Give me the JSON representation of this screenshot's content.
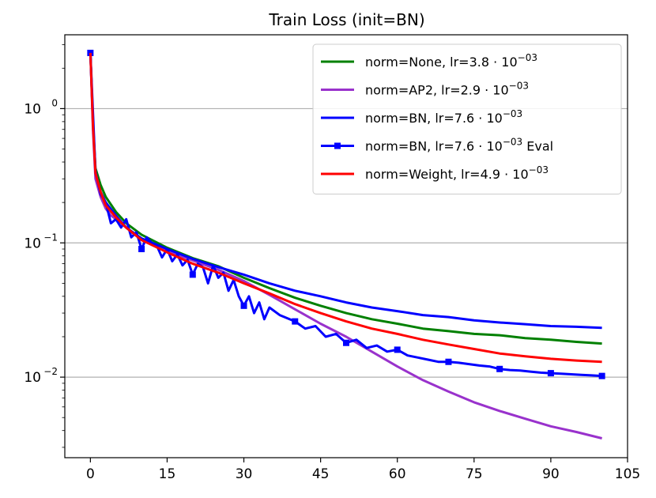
{
  "chart_data": {
    "type": "line",
    "title": "Train Loss (init=BN)",
    "xlabel": "",
    "ylabel": "",
    "xlim": [
      -5,
      105
    ],
    "ylim_log10": [
      -2.6,
      0.55
    ],
    "yscale": "log",
    "grid": "y-major",
    "legend_position": "top-right",
    "x_ticks": [
      0,
      15,
      30,
      45,
      60,
      75,
      90,
      105
    ],
    "y_ticks": [
      {
        "value": 1,
        "base": "10",
        "exp": "0"
      },
      {
        "value": 0.1,
        "base": "10",
        "exp": "−1"
      },
      {
        "value": 0.01,
        "base": "10",
        "exp": "−2"
      }
    ],
    "series": [
      {
        "name": "norm=None",
        "lr_text": "lr=3.8",
        "exp_text": "−03",
        "suffix": "",
        "color": "#008000",
        "markers": false,
        "points": [
          [
            0,
            2.6
          ],
          [
            0.5,
            0.8
          ],
          [
            1,
            0.36
          ],
          [
            2,
            0.27
          ],
          [
            3,
            0.22
          ],
          [
            5,
            0.17
          ],
          [
            7,
            0.14
          ],
          [
            10,
            0.115
          ],
          [
            15,
            0.092
          ],
          [
            20,
            0.077
          ],
          [
            25,
            0.067
          ],
          [
            30,
            0.055
          ],
          [
            35,
            0.046
          ],
          [
            40,
            0.039
          ],
          [
            45,
            0.034
          ],
          [
            50,
            0.03
          ],
          [
            55,
            0.027
          ],
          [
            60,
            0.025
          ],
          [
            65,
            0.023
          ],
          [
            70,
            0.022
          ],
          [
            75,
            0.021
          ],
          [
            80,
            0.0205
          ],
          [
            85,
            0.0195
          ],
          [
            90,
            0.019
          ],
          [
            95,
            0.0183
          ],
          [
            100,
            0.0178
          ]
        ]
      },
      {
        "name": "norm=AP2",
        "lr_text": "lr=2.9",
        "exp_text": "−03",
        "suffix": "",
        "color": "#9932CC",
        "markers": false,
        "points": [
          [
            0,
            2.6
          ],
          [
            0.5,
            0.7
          ],
          [
            1,
            0.3
          ],
          [
            2,
            0.22
          ],
          [
            3,
            0.18
          ],
          [
            4,
            0.16
          ],
          [
            5,
            0.15
          ],
          [
            7,
            0.13
          ],
          [
            10,
            0.105
          ],
          [
            15,
            0.087
          ],
          [
            20,
            0.074
          ],
          [
            25,
            0.063
          ],
          [
            30,
            0.052
          ],
          [
            35,
            0.041
          ],
          [
            40,
            0.032
          ],
          [
            45,
            0.025
          ],
          [
            50,
            0.02
          ],
          [
            55,
            0.0155
          ],
          [
            60,
            0.012
          ],
          [
            65,
            0.0095
          ],
          [
            70,
            0.0078
          ],
          [
            75,
            0.0065
          ],
          [
            80,
            0.0056
          ],
          [
            85,
            0.0049
          ],
          [
            90,
            0.0043
          ],
          [
            95,
            0.0039
          ],
          [
            100,
            0.0035
          ]
        ]
      },
      {
        "name": "norm=BN",
        "lr_text": "lr=7.6",
        "exp_text": "−03",
        "suffix": "",
        "color": "#0000FF",
        "markers": false,
        "points": [
          [
            0,
            2.6
          ],
          [
            0.5,
            0.8
          ],
          [
            1,
            0.33
          ],
          [
            2,
            0.24
          ],
          [
            3,
            0.2
          ],
          [
            5,
            0.16
          ],
          [
            7,
            0.13
          ],
          [
            10,
            0.108
          ],
          [
            15,
            0.09
          ],
          [
            20,
            0.076
          ],
          [
            25,
            0.066
          ],
          [
            30,
            0.058
          ],
          [
            35,
            0.05
          ],
          [
            40,
            0.044
          ],
          [
            45,
            0.04
          ],
          [
            50,
            0.036
          ],
          [
            55,
            0.033
          ],
          [
            60,
            0.031
          ],
          [
            65,
            0.029
          ],
          [
            70,
            0.028
          ],
          [
            75,
            0.0265
          ],
          [
            80,
            0.0255
          ],
          [
            85,
            0.0248
          ],
          [
            90,
            0.024
          ],
          [
            95,
            0.0237
          ],
          [
            100,
            0.0233
          ]
        ]
      },
      {
        "name": "norm=BN",
        "lr_text": "lr=7.6",
        "exp_text": "−03",
        "suffix": " Eval",
        "color": "#0000FF",
        "markers": true,
        "points": [
          [
            0,
            2.6
          ],
          [
            1,
            0.34
          ],
          [
            2,
            0.23
          ],
          [
            3,
            0.2
          ],
          [
            4,
            0.14
          ],
          [
            5,
            0.15
          ],
          [
            6,
            0.13
          ],
          [
            7,
            0.15
          ],
          [
            8,
            0.11
          ],
          [
            9,
            0.12
          ],
          [
            10,
            0.09
          ],
          [
            11,
            0.11
          ],
          [
            12,
            0.1
          ],
          [
            13,
            0.095
          ],
          [
            14,
            0.078
          ],
          [
            15,
            0.09
          ],
          [
            16,
            0.073
          ],
          [
            17,
            0.082
          ],
          [
            18,
            0.068
          ],
          [
            19,
            0.075
          ],
          [
            20,
            0.058
          ],
          [
            21,
            0.07
          ],
          [
            22,
            0.066
          ],
          [
            23,
            0.05
          ],
          [
            24,
            0.068
          ],
          [
            25,
            0.055
          ],
          [
            26,
            0.06
          ],
          [
            27,
            0.044
          ],
          [
            28,
            0.053
          ],
          [
            29,
            0.04
          ],
          [
            30,
            0.034
          ],
          [
            31,
            0.04
          ],
          [
            32,
            0.03
          ],
          [
            33,
            0.036
          ],
          [
            34,
            0.027
          ],
          [
            35,
            0.033
          ],
          [
            37,
            0.029
          ],
          [
            40,
            0.026
          ],
          [
            42,
            0.023
          ],
          [
            44,
            0.024
          ],
          [
            46,
            0.02
          ],
          [
            48,
            0.021
          ],
          [
            50,
            0.018
          ],
          [
            52,
            0.019
          ],
          [
            54,
            0.0165
          ],
          [
            56,
            0.0172
          ],
          [
            58,
            0.0155
          ],
          [
            60,
            0.016
          ],
          [
            62,
            0.0145
          ],
          [
            64,
            0.014
          ],
          [
            66,
            0.0135
          ],
          [
            68,
            0.013
          ],
          [
            70,
            0.013
          ],
          [
            72,
            0.0128
          ],
          [
            74,
            0.0125
          ],
          [
            76,
            0.0122
          ],
          [
            78,
            0.012
          ],
          [
            80,
            0.0115
          ],
          [
            82,
            0.0113
          ],
          [
            84,
            0.0112
          ],
          [
            86,
            0.011
          ],
          [
            88,
            0.0108
          ],
          [
            90,
            0.0107
          ],
          [
            92,
            0.0106
          ],
          [
            94,
            0.0105
          ],
          [
            96,
            0.0104
          ],
          [
            98,
            0.0103
          ],
          [
            100,
            0.0102
          ]
        ]
      },
      {
        "name": "norm=Weight",
        "lr_text": "lr=4.9",
        "exp_text": "−03",
        "suffix": "",
        "color": "#FF0000",
        "markers": false,
        "points": [
          [
            0,
            2.6
          ],
          [
            0.5,
            0.75
          ],
          [
            1,
            0.33
          ],
          [
            2,
            0.24
          ],
          [
            3,
            0.19
          ],
          [
            5,
            0.155
          ],
          [
            7,
            0.13
          ],
          [
            10,
            0.105
          ],
          [
            15,
            0.085
          ],
          [
            20,
            0.07
          ],
          [
            25,
            0.06
          ],
          [
            30,
            0.05
          ],
          [
            35,
            0.042
          ],
          [
            40,
            0.035
          ],
          [
            45,
            0.03
          ],
          [
            50,
            0.026
          ],
          [
            55,
            0.023
          ],
          [
            60,
            0.021
          ],
          [
            65,
            0.019
          ],
          [
            70,
            0.0175
          ],
          [
            75,
            0.0162
          ],
          [
            80,
            0.015
          ],
          [
            85,
            0.0143
          ],
          [
            90,
            0.0137
          ],
          [
            95,
            0.0133
          ],
          [
            100,
            0.013
          ]
        ]
      }
    ]
  }
}
